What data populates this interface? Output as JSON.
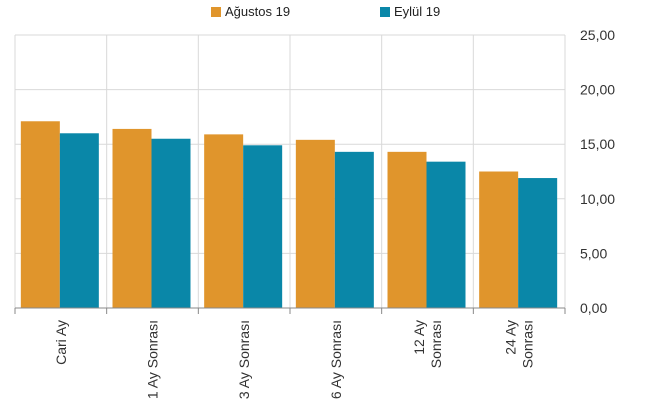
{
  "chart_data": {
    "type": "bar",
    "categories": [
      "Cari Ay",
      "1 Ay Sonrası",
      "3 Ay Sonrası",
      "6 Ay Sonrası",
      "12 Ay\nSonrası",
      "24 Ay\nSonrası"
    ],
    "series": [
      {
        "name": "Ağustos 19",
        "color": "#E0952C",
        "values": [
          17.1,
          16.4,
          15.9,
          15.4,
          14.3,
          12.5
        ]
      },
      {
        "name": "Eylül 19",
        "color": "#0A87A8",
        "values": [
          16.0,
          15.5,
          14.9,
          14.3,
          13.4,
          11.9
        ]
      }
    ],
    "y_ticks": [
      "0,00",
      "5,00",
      "10,00",
      "15,00",
      "20,00",
      "25,00"
    ],
    "ylim": [
      0,
      25
    ],
    "y_axis_side": "right",
    "grid": true,
    "legend_position": "top-center",
    "title": "",
    "xlabel": "",
    "ylabel": ""
  }
}
